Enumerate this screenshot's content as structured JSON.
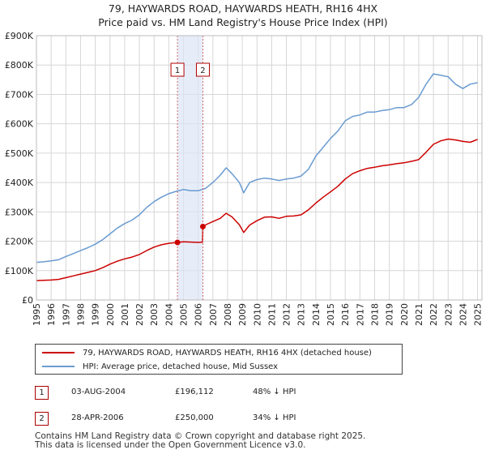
{
  "header": {
    "title": "79, HAYWARDS ROAD, HAYWARDS HEATH, RH16 4HX",
    "subtitle": "Price paid vs. HM Land Registry's House Price Index (HPI)"
  },
  "chart_data": {
    "type": "line",
    "title": "79, HAYWARDS ROAD, HAYWARDS HEATH, RH16 4HX",
    "subtitle": "Price paid vs. HM Land Registry's House Price Index (HPI)",
    "xlim": [
      1995,
      2025.3
    ],
    "ylim": [
      0,
      900000
    ],
    "x_ticks": [
      "1995",
      "1996",
      "1997",
      "1998",
      "1999",
      "2000",
      "2001",
      "2002",
      "2003",
      "2004",
      "2005",
      "2006",
      "2007",
      "2008",
      "2009",
      "2010",
      "2011",
      "2012",
      "2013",
      "2014",
      "2015",
      "2016",
      "2017",
      "2018",
      "2019",
      "2020",
      "2021",
      "2022",
      "2023",
      "2024",
      "2025"
    ],
    "y_ticks": [
      {
        "value": 0,
        "label": "£0"
      },
      {
        "value": 100000,
        "label": "£100K"
      },
      {
        "value": 200000,
        "label": "£200K"
      },
      {
        "value": 300000,
        "label": "£300K"
      },
      {
        "value": 400000,
        "label": "£400K"
      },
      {
        "value": 500000,
        "label": "£500K"
      },
      {
        "value": 600000,
        "label": "£600K"
      },
      {
        "value": 700000,
        "label": "£700K"
      },
      {
        "value": 800000,
        "label": "£800K"
      },
      {
        "value": 900000,
        "label": "£900K"
      }
    ],
    "grid": true,
    "shaded_span": [
      2004.59,
      2006.32
    ],
    "series": [
      {
        "name": "79, HAYWARDS ROAD, HAYWARDS HEATH, RH16 4HX (detached house)",
        "color": "#cc0000",
        "x": [
          1995,
          1995.5,
          1996,
          1996.5,
          1997,
          1997.5,
          1998,
          1998.5,
          1999,
          1999.5,
          2000,
          2000.5,
          2001,
          2001.5,
          2002,
          2002.5,
          2003,
          2003.5,
          2004,
          2004.59,
          2005,
          2005.5,
          2006,
          2006.3,
          2006.32,
          2006.6,
          2007,
          2007.5,
          2007.9,
          2008.3,
          2008.8,
          2009.1,
          2009.5,
          2010,
          2010.5,
          2011,
          2011.5,
          2012,
          2012.5,
          2013,
          2013.5,
          2014,
          2014.5,
          2015,
          2015.5,
          2016,
          2016.5,
          2017,
          2017.5,
          2018,
          2018.5,
          2019,
          2019.5,
          2020,
          2020.5,
          2021,
          2021.5,
          2022,
          2022.5,
          2023,
          2023.5,
          2024,
          2024.5,
          2025
        ],
        "y": [
          66000,
          67000,
          68000,
          70000,
          76000,
          82000,
          88000,
          94000,
          100000,
          110000,
          122000,
          132000,
          140000,
          146000,
          155000,
          168000,
          180000,
          188000,
          193000,
          196112,
          198000,
          197000,
          196000,
          197000,
          250000,
          258000,
          267000,
          278000,
          295000,
          283000,
          256000,
          230000,
          255000,
          270000,
          282000,
          283000,
          278000,
          285000,
          286000,
          290000,
          307000,
          330000,
          350000,
          368000,
          387000,
          412000,
          430000,
          440000,
          448000,
          452000,
          457000,
          460000,
          464000,
          467000,
          472000,
          478000,
          503000,
          530000,
          542000,
          548000,
          545000,
          540000,
          537000,
          547000
        ]
      },
      {
        "name": "HPI: Average price, detached house, Mid Sussex",
        "color": "#6a9bd1",
        "x": [
          1995,
          1995.5,
          1996,
          1996.5,
          1997,
          1997.5,
          1998,
          1998.5,
          1999,
          1999.5,
          2000,
          2000.5,
          2001,
          2001.5,
          2002,
          2002.5,
          2003,
          2003.5,
          2004,
          2004.5,
          2005,
          2005.5,
          2006,
          2006.5,
          2007,
          2007.5,
          2007.9,
          2008.3,
          2008.8,
          2009.1,
          2009.5,
          2010,
          2010.5,
          2011,
          2011.5,
          2012,
          2012.5,
          2013,
          2013.5,
          2014,
          2014.5,
          2015,
          2015.5,
          2016,
          2016.5,
          2017,
          2017.5,
          2018,
          2018.5,
          2019,
          2019.5,
          2020,
          2020.5,
          2021,
          2021.5,
          2022,
          2022.5,
          2023,
          2023.5,
          2024,
          2024.5,
          2025
        ],
        "y": [
          128000,
          130000,
          133000,
          137000,
          148000,
          158000,
          168000,
          178000,
          190000,
          205000,
          225000,
          245000,
          260000,
          272000,
          290000,
          315000,
          335000,
          350000,
          362000,
          370000,
          376000,
          372000,
          372000,
          380000,
          400000,
          425000,
          450000,
          430000,
          400000,
          365000,
          400000,
          410000,
          415000,
          412000,
          407000,
          412000,
          415000,
          422000,
          445000,
          490000,
          520000,
          550000,
          575000,
          610000,
          625000,
          630000,
          640000,
          640000,
          645000,
          648000,
          655000,
          655000,
          665000,
          690000,
          735000,
          770000,
          765000,
          760000,
          735000,
          720000,
          735000,
          740000
        ]
      }
    ],
    "annotations": [
      {
        "id": "1",
        "x": 2004.59
      },
      {
        "id": "2",
        "x": 2006.32
      }
    ],
    "markers": [
      {
        "series": 0,
        "x": 2004.59,
        "y": 196112
      },
      {
        "series": 0,
        "x": 2006.32,
        "y": 250000
      }
    ]
  },
  "legend": {
    "items": [
      {
        "label": "79, HAYWARDS ROAD, HAYWARDS HEATH, RH16 4HX (detached house)",
        "color": "#cc0000"
      },
      {
        "label": "HPI: Average price, detached house, Mid Sussex",
        "color": "#6a9bd1"
      }
    ]
  },
  "transactions": [
    {
      "id": "1",
      "date": "03-AUG-2004",
      "price": "£196,112",
      "hpi": "48% ↓ HPI"
    },
    {
      "id": "2",
      "date": "28-APR-2006",
      "price": "£250,000",
      "hpi": "34% ↓ HPI"
    }
  ],
  "footer": {
    "line1": "Contains HM Land Registry data © Crown copyright and database right 2025.",
    "line2": "This data is licensed under the Open Government Licence v3.0."
  }
}
